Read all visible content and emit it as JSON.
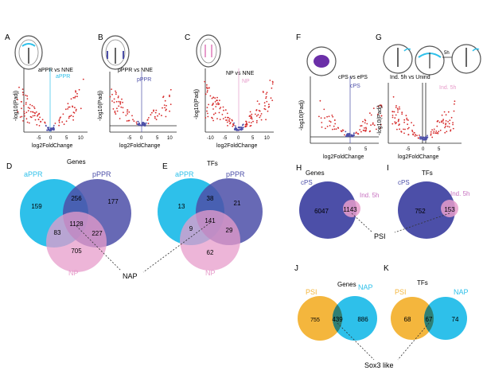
{
  "colors": {
    "cyan": "#2ec0ea",
    "blue": "#4c4fa8",
    "pink": "#e79ccb",
    "orange": "#f4b63d",
    "green": "#2f7f74",
    "magenta": "#c66fbf",
    "red": "#d62a2a"
  },
  "panels": {
    "a": {
      "letter": "A",
      "title": "aPPR vs NNE",
      "highlight": "aPPR",
      "ylabel": "-log10(Padj)",
      "xlabel": "log2FoldChange",
      "xticks": [
        "-5",
        "0",
        "5",
        "10"
      ]
    },
    "b": {
      "letter": "B",
      "title": "pPPR vs NNE",
      "highlight": "pPPR",
      "ylabel": "-log10(Padj)",
      "xlabel": "log2FoldChange",
      "xticks": [
        "-5",
        "0",
        "5",
        "10"
      ]
    },
    "c": {
      "letter": "C",
      "title": "NP vs NNE",
      "highlight": "NP",
      "ylabel": "-log10(Padj)",
      "xlabel": "log2FoldChange",
      "xticks": [
        "-10",
        "-5",
        "0",
        "5",
        "10"
      ]
    },
    "f": {
      "letter": "F",
      "title": "cPS vs ePS",
      "highlight": "cPS",
      "ylabel": "-log10(Padj)",
      "xlabel": "log2FoldChange",
      "xticks": [
        "0",
        "5"
      ]
    },
    "g": {
      "letter": "G",
      "title": "Ind. 5h vs Unind",
      "highlight": "Ind. 5h",
      "ylabel": "-log10(Padj)",
      "xlabel": "log2FoldChange",
      "xticks": [
        "-5",
        "0",
        "5"
      ],
      "arrow_label": "5h"
    },
    "d": {
      "letter": "D",
      "title": "Genes",
      "labels": [
        "aPPR",
        "pPPR",
        "NP"
      ],
      "counts": {
        "a_only": "159",
        "ab": "256",
        "b_only": "177",
        "abc": "1128",
        "ac": "83",
        "bc": "227",
        "c_only": "705"
      }
    },
    "e": {
      "letter": "E",
      "title": "TFs",
      "labels": [
        "aPPR",
        "pPPR",
        "NP"
      ],
      "counts": {
        "a_only": "13",
        "ab": "38",
        "b_only": "21",
        "abc": "141",
        "ac": "9",
        "bc": "29",
        "c_only": "62"
      }
    },
    "h": {
      "letter": "H",
      "title": "Genes",
      "labels": [
        "cPS",
        "Ind. 5h"
      ],
      "counts": {
        "big_only": "6047",
        "overlap": "1143"
      }
    },
    "i": {
      "letter": "I",
      "title": "TFs",
      "labels": [
        "cPS",
        "Ind. 5h"
      ],
      "counts": {
        "big_only": "752",
        "overlap": "153"
      }
    },
    "j": {
      "letter": "J",
      "title": "Genes",
      "labels": [
        "PSI",
        "NAP"
      ],
      "counts": {
        "left_only": "755",
        "overlap": "439",
        "right_only": "886"
      }
    },
    "k": {
      "letter": "K",
      "title": "TFs",
      "labels": [
        "PSI",
        "NAP"
      ],
      "counts": {
        "left_only": "68",
        "overlap": "67",
        "right_only": "74"
      }
    }
  },
  "callouts": {
    "nap": "NAP",
    "psi": "PSI",
    "sox3": "Sox3 like"
  }
}
